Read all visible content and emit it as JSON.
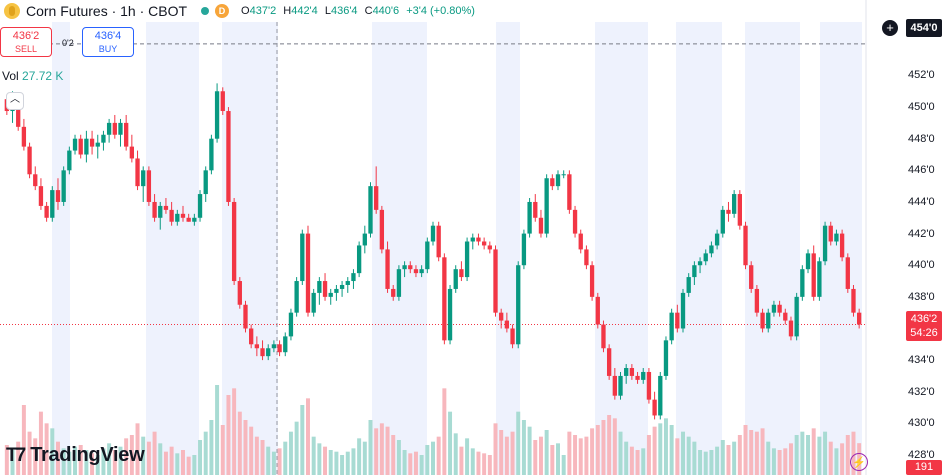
{
  "header": {
    "symbol_title": "Corn Futures · 1h · CBOT",
    "badge_d": "D",
    "ohlc": {
      "o_label": "O",
      "o_value": "437'2",
      "h_label": "H",
      "h_value": "442'4",
      "l_label": "L",
      "l_value": "436'4",
      "c_label": "C",
      "c_value": "440'6",
      "change": "+3'4 (+0.80%)"
    }
  },
  "trade": {
    "sell_price": "436'2",
    "sell_label": "SELL",
    "spread": "0'2",
    "buy_price": "436'4",
    "buy_label": "BUY"
  },
  "volume": {
    "label": "Vol",
    "value": "27.72 K"
  },
  "axis": {
    "high_tag": "454'0",
    "price_tag": "436'2",
    "countdown": "54:26",
    "volume_tag": "191"
  },
  "branding": {
    "logo_text": "TradingView"
  },
  "colors": {
    "up": "#089981",
    "down": "#f23645",
    "session_band": "#eef2fd",
    "price_line": "#f23645"
  },
  "chart_data": {
    "type": "candlestick",
    "price_unit": "cents/bushel (quarters in ticks)",
    "y_ticks": [
      "428'0",
      "430'0",
      "432'0",
      "434'0",
      "436'0",
      "438'0",
      "440'0",
      "442'0",
      "444'0",
      "446'0",
      "448'0",
      "450'0",
      "452'0"
    ],
    "ylim": [
      428,
      455
    ],
    "last_price": 436.25,
    "crosshair_price": 454,
    "candles": [
      [
        450.5,
        450.75,
        449.5,
        449.75,
        180
      ],
      [
        449.75,
        451,
        449,
        450.5,
        150
      ],
      [
        450.5,
        450.75,
        448.5,
        448.75,
        200
      ],
      [
        448.75,
        449.25,
        447.25,
        447.5,
        420
      ],
      [
        447.5,
        447.75,
        445.5,
        445.75,
        260
      ],
      [
        445.75,
        446.25,
        444.75,
        445,
        220
      ],
      [
        445,
        445.5,
        443.5,
        443.75,
        380
      ],
      [
        443.75,
        444,
        442.75,
        443,
        310
      ],
      [
        443,
        445,
        442.75,
        444.75,
        280
      ],
      [
        444.75,
        445.5,
        443.5,
        444,
        200
      ],
      [
        444,
        446.25,
        443.75,
        446,
        160
      ],
      [
        446,
        447.5,
        445.75,
        447.25,
        140
      ],
      [
        447.25,
        448.25,
        447,
        448,
        170
      ],
      [
        448,
        448.25,
        446.75,
        447,
        180
      ],
      [
        447,
        448.5,
        446.5,
        448,
        150
      ],
      [
        448,
        448.5,
        447,
        447.5,
        130
      ],
      [
        447.5,
        448.25,
        446.75,
        447.75,
        120
      ],
      [
        447.75,
        448.5,
        447.25,
        448.25,
        160
      ],
      [
        448.25,
        449.25,
        447.75,
        449,
        190
      ],
      [
        449,
        449.5,
        448,
        448.25,
        150
      ],
      [
        448.25,
        449.25,
        447.5,
        449,
        170
      ],
      [
        449,
        449.5,
        447.25,
        447.5,
        220
      ],
      [
        447.5,
        448.25,
        446.5,
        446.75,
        240
      ],
      [
        446.75,
        447.25,
        444.75,
        445,
        310
      ],
      [
        445,
        446.25,
        444,
        446,
        230
      ],
      [
        446,
        446.25,
        443.75,
        444,
        200
      ],
      [
        444,
        444.5,
        442.75,
        443,
        260
      ],
      [
        443,
        444,
        442.25,
        443.75,
        190
      ],
      [
        443.75,
        444.25,
        443.25,
        443.5,
        140
      ],
      [
        443.5,
        444,
        442.5,
        442.75,
        170
      ],
      [
        442.75,
        443.5,
        442.5,
        443.25,
        130
      ],
      [
        443.25,
        443.75,
        442.75,
        443,
        150
      ],
      [
        443,
        443.25,
        442.75,
        442.75,
        110
      ],
      [
        442.75,
        443.25,
        442.5,
        443,
        120
      ],
      [
        443,
        444.75,
        442.75,
        444.5,
        210
      ],
      [
        444.5,
        446.25,
        444,
        446,
        260
      ],
      [
        446,
        448.25,
        445.75,
        448,
        330
      ],
      [
        448,
        451.5,
        447.75,
        451,
        540
      ],
      [
        451,
        451.25,
        449.5,
        449.75,
        300
      ],
      [
        449.75,
        450,
        443.75,
        444,
        480
      ],
      [
        444,
        444.25,
        438.75,
        439,
        520
      ],
      [
        439,
        439.25,
        437.25,
        437.5,
        380
      ],
      [
        437.5,
        437.75,
        435.75,
        436,
        330
      ],
      [
        436,
        436.25,
        434.75,
        435,
        290
      ],
      [
        435,
        435.5,
        434.25,
        434.75,
        230
      ],
      [
        434.75,
        435.25,
        434,
        434.25,
        210
      ],
      [
        434.25,
        435,
        434,
        434.75,
        170
      ],
      [
        434.75,
        435.25,
        434.5,
        435,
        140
      ],
      [
        435,
        435.25,
        434.25,
        434.5,
        160
      ],
      [
        434.5,
        435.75,
        434.25,
        435.5,
        200
      ],
      [
        435.5,
        437.25,
        435.25,
        437,
        260
      ],
      [
        437,
        439.25,
        436.75,
        439,
        320
      ],
      [
        439,
        442.25,
        438.75,
        442,
        420
      ],
      [
        442,
        442.5,
        436.75,
        437,
        460
      ],
      [
        437,
        438.5,
        436.75,
        438.25,
        230
      ],
      [
        438.25,
        439.25,
        437.5,
        439,
        190
      ],
      [
        439,
        439.5,
        437.75,
        438,
        170
      ],
      [
        438,
        438.5,
        437.5,
        438.25,
        150
      ],
      [
        438.25,
        438.75,
        437.75,
        438.5,
        140
      ],
      [
        438.5,
        439,
        438,
        438.75,
        120
      ],
      [
        438.75,
        439.25,
        438.25,
        439,
        140
      ],
      [
        439,
        439.75,
        438.5,
        439.5,
        160
      ],
      [
        439.5,
        441.5,
        439.25,
        441.25,
        220
      ],
      [
        441.25,
        442.5,
        440.75,
        442,
        200
      ],
      [
        442,
        445.25,
        441.75,
        445,
        330
      ],
      [
        445,
        446.25,
        443.25,
        443.5,
        280
      ],
      [
        443.5,
        443.75,
        440.75,
        441,
        310
      ],
      [
        441,
        441.5,
        438.25,
        438.5,
        290
      ],
      [
        438.5,
        438.75,
        437.75,
        438,
        240
      ],
      [
        438,
        440,
        437.75,
        439.75,
        210
      ],
      [
        439.75,
        440.25,
        439.25,
        440,
        150
      ],
      [
        440,
        440.25,
        439.5,
        439.75,
        130
      ],
      [
        439.75,
        440,
        439.25,
        439.5,
        140
      ],
      [
        439.5,
        440,
        439.25,
        439.75,
        120
      ],
      [
        439.75,
        441.75,
        439.5,
        441.5,
        180
      ],
      [
        441.5,
        442.75,
        441.25,
        442.5,
        200
      ],
      [
        442.5,
        442.75,
        440.25,
        440.5,
        230
      ],
      [
        440.5,
        440.75,
        435,
        435.25,
        520
      ],
      [
        435.25,
        438.75,
        435,
        438.5,
        380
      ],
      [
        438.5,
        440,
        438.25,
        439.75,
        250
      ],
      [
        439.75,
        440.25,
        439,
        439.25,
        170
      ],
      [
        439.25,
        441.75,
        439,
        441.5,
        220
      ],
      [
        441.5,
        442,
        441,
        441.75,
        160
      ],
      [
        441.75,
        442,
        441.25,
        441.5,
        140
      ],
      [
        441.5,
        441.75,
        441,
        441.25,
        130
      ],
      [
        441.25,
        441.5,
        440.75,
        441,
        120
      ],
      [
        441,
        441.25,
        436.75,
        437,
        310
      ],
      [
        437,
        437.25,
        436,
        436.5,
        270
      ],
      [
        436.5,
        437,
        435.75,
        436,
        230
      ],
      [
        436,
        436.25,
        434.75,
        435,
        260
      ],
      [
        435,
        440.25,
        434.75,
        440,
        380
      ],
      [
        440,
        442.25,
        439.75,
        442,
        330
      ],
      [
        442,
        444.25,
        441.75,
        444,
        290
      ],
      [
        444,
        444.5,
        442.75,
        443,
        210
      ],
      [
        443,
        443.5,
        441.75,
        442,
        230
      ],
      [
        442,
        445.75,
        441.75,
        445.5,
        270
      ],
      [
        445.5,
        445.75,
        444.75,
        445,
        180
      ],
      [
        445,
        446,
        444.75,
        445.75,
        190
      ],
      [
        445.75,
        446,
        445.5,
        445.75,
        120
      ],
      [
        445.75,
        446,
        443.25,
        443.5,
        260
      ],
      [
        443.5,
        443.75,
        441.75,
        442,
        240
      ],
      [
        442,
        442.25,
        440.75,
        441,
        220
      ],
      [
        441,
        441.25,
        439.75,
        440,
        230
      ],
      [
        440,
        440.25,
        437.75,
        438,
        280
      ],
      [
        438,
        438.25,
        436,
        436.25,
        300
      ],
      [
        436.25,
        436.5,
        434.5,
        434.75,
        330
      ],
      [
        434.75,
        435,
        432.75,
        433,
        360
      ],
      [
        433,
        433.5,
        431.5,
        431.75,
        340
      ],
      [
        431.75,
        433.25,
        431.5,
        433,
        260
      ],
      [
        433,
        433.75,
        432.5,
        433.5,
        200
      ],
      [
        433.5,
        433.75,
        432.75,
        433,
        170
      ],
      [
        433,
        433.25,
        432.5,
        432.75,
        150
      ],
      [
        432.75,
        433.5,
        432.5,
        433.25,
        160
      ],
      [
        433.25,
        433.5,
        431.25,
        431.5,
        240
      ],
      [
        431.5,
        432,
        430.25,
        430.5,
        290
      ],
      [
        430.5,
        433.25,
        430.25,
        433,
        310
      ],
      [
        433,
        435.5,
        432.75,
        435.25,
        340
      ],
      [
        435.25,
        437.25,
        435,
        437,
        300
      ],
      [
        437,
        437.5,
        435.75,
        436,
        220
      ],
      [
        436,
        438.5,
        435.75,
        438.25,
        260
      ],
      [
        438.25,
        439.5,
        438,
        439.25,
        230
      ],
      [
        439.25,
        440.25,
        438.75,
        440,
        200
      ],
      [
        440,
        440.5,
        439.5,
        440.25,
        150
      ],
      [
        440.25,
        441,
        440,
        440.75,
        140
      ],
      [
        440.75,
        441.5,
        440.5,
        441.25,
        150
      ],
      [
        441.25,
        442.25,
        441,
        442,
        170
      ],
      [
        442,
        443.75,
        441.75,
        443.5,
        210
      ],
      [
        443.5,
        444,
        442.75,
        443.25,
        180
      ],
      [
        443.25,
        444.75,
        443,
        444.5,
        200
      ],
      [
        444.5,
        444.75,
        442.25,
        442.5,
        240
      ],
      [
        442.5,
        442.75,
        439.75,
        440,
        300
      ],
      [
        440,
        440.25,
        438.25,
        438.5,
        270
      ],
      [
        438.5,
        438.75,
        436.75,
        437,
        260
      ],
      [
        437,
        437.25,
        435.75,
        436,
        280
      ],
      [
        436,
        437.25,
        435.75,
        437,
        200
      ],
      [
        437,
        437.75,
        436.75,
        437.5,
        160
      ],
      [
        437.5,
        437.75,
        436.75,
        437,
        150
      ],
      [
        437,
        437.25,
        436.25,
        436.5,
        160
      ],
      [
        436.5,
        436.75,
        435.25,
        435.5,
        190
      ],
      [
        435.5,
        438.25,
        435.25,
        438,
        240
      ],
      [
        438,
        440,
        437.75,
        439.75,
        260
      ],
      [
        439.75,
        441,
        439.5,
        440.75,
        240
      ],
      [
        440.75,
        441.25,
        437.75,
        438,
        280
      ],
      [
        438,
        440.5,
        437.75,
        440.25,
        230
      ],
      [
        440.25,
        442.75,
        440,
        442.5,
        260
      ],
      [
        442.5,
        442.75,
        441.25,
        441.5,
        200
      ],
      [
        441.5,
        442.25,
        441.25,
        442,
        160
      ],
      [
        442,
        442.25,
        440.25,
        440.5,
        190
      ],
      [
        440.5,
        440.75,
        438.25,
        438.5,
        240
      ],
      [
        438.5,
        438.75,
        436.75,
        437,
        260
      ],
      [
        437,
        437.25,
        436,
        436.25,
        191
      ]
    ]
  }
}
